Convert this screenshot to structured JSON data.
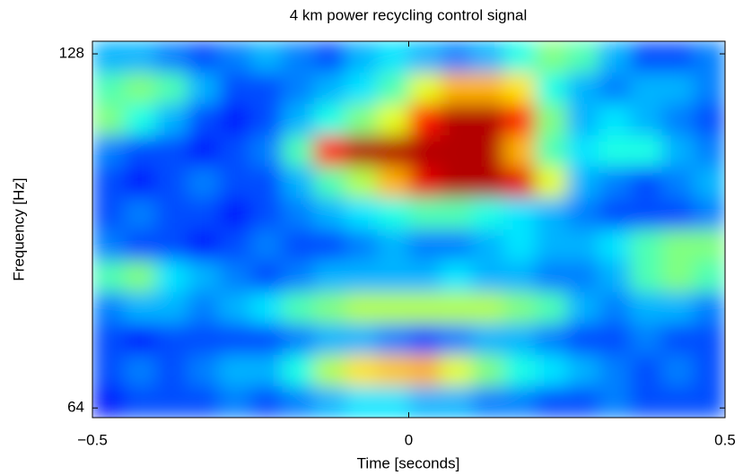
{
  "chart_data": {
    "type": "heatmap",
    "title": "4 km power recycling control signal",
    "xlabel": "Time [seconds]",
    "ylabel": "Frequency [Hz]",
    "xlim": [
      -0.5,
      0.5
    ],
    "xticks": [
      {
        "value": -0.5,
        "label": "−0.5"
      },
      0,
      0.5
    ],
    "ylim": [
      62.8,
      131.2
    ],
    "yticks": [
      64,
      128
    ],
    "ylog": true,
    "colormap": "jet",
    "z": [
      [
        0.3,
        0.3,
        0.25,
        0.2,
        0.25,
        0.3,
        0.25,
        0.2,
        0.3,
        0.35,
        0.3,
        0.25,
        0.3,
        0.4,
        0.5,
        0.45,
        0.3,
        0.2,
        0.2,
        0.25
      ],
      [
        0.45,
        0.5,
        0.45,
        0.3,
        0.2,
        0.2,
        0.25,
        0.3,
        0.35,
        0.45,
        0.6,
        0.7,
        0.7,
        0.65,
        0.4,
        0.3,
        0.25,
        0.3,
        0.3,
        0.25
      ],
      [
        0.5,
        0.4,
        0.3,
        0.2,
        0.15,
        0.2,
        0.3,
        0.4,
        0.5,
        0.6,
        0.85,
        0.95,
        0.95,
        0.85,
        0.5,
        0.3,
        0.35,
        0.3,
        0.25,
        0.2
      ],
      [
        0.25,
        0.2,
        0.2,
        0.15,
        0.2,
        0.25,
        0.45,
        0.85,
        0.95,
        0.95,
        0.95,
        0.95,
        0.95,
        0.7,
        0.45,
        0.35,
        0.4,
        0.4,
        0.3,
        0.25
      ],
      [
        0.2,
        0.15,
        0.2,
        0.25,
        0.2,
        0.2,
        0.3,
        0.45,
        0.55,
        0.7,
        0.9,
        0.95,
        0.95,
        0.9,
        0.6,
        0.3,
        0.25,
        0.2,
        0.25,
        0.3
      ],
      [
        0.2,
        0.25,
        0.2,
        0.2,
        0.15,
        0.2,
        0.25,
        0.3,
        0.35,
        0.4,
        0.45,
        0.45,
        0.4,
        0.35,
        0.3,
        0.25,
        0.2,
        0.2,
        0.2,
        0.25
      ],
      [
        0.25,
        0.2,
        0.2,
        0.15,
        0.2,
        0.25,
        0.2,
        0.2,
        0.25,
        0.3,
        0.25,
        0.25,
        0.3,
        0.35,
        0.3,
        0.3,
        0.35,
        0.45,
        0.5,
        0.5
      ],
      [
        0.45,
        0.5,
        0.35,
        0.3,
        0.25,
        0.2,
        0.25,
        0.3,
        0.3,
        0.3,
        0.3,
        0.35,
        0.3,
        0.3,
        0.25,
        0.25,
        0.3,
        0.45,
        0.5,
        0.45
      ],
      [
        0.25,
        0.3,
        0.3,
        0.25,
        0.3,
        0.35,
        0.45,
        0.5,
        0.55,
        0.55,
        0.55,
        0.55,
        0.55,
        0.5,
        0.45,
        0.3,
        0.25,
        0.3,
        0.3,
        0.25
      ],
      [
        0.2,
        0.15,
        0.2,
        0.2,
        0.2,
        0.2,
        0.25,
        0.3,
        0.3,
        0.25,
        0.2,
        0.25,
        0.3,
        0.3,
        0.25,
        0.2,
        0.2,
        0.25,
        0.2,
        0.2
      ],
      [
        0.2,
        0.25,
        0.2,
        0.25,
        0.3,
        0.3,
        0.4,
        0.55,
        0.65,
        0.68,
        0.7,
        0.6,
        0.5,
        0.4,
        0.35,
        0.3,
        0.25,
        0.2,
        0.25,
        0.2
      ],
      [
        0.15,
        0.2,
        0.2,
        0.2,
        0.25,
        0.2,
        0.25,
        0.3,
        0.35,
        0.35,
        0.3,
        0.3,
        0.25,
        0.25,
        0.2,
        0.2,
        0.25,
        0.2,
        0.2,
        0.2
      ]
    ]
  }
}
